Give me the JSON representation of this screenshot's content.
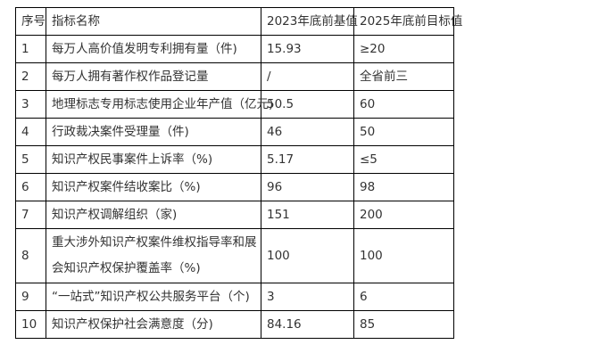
{
  "table": {
    "headers": [
      "序号",
      "指标名称",
      "2023年底前基值",
      "2025年底前目标值"
    ],
    "rows": [
      [
        "1",
        "每万人高价值发明专利拥有量（件)",
        "15.93",
        "≥20"
      ],
      [
        "2",
        "每万人拥有著作权作品登记量",
        "/",
        "全省前三"
      ],
      [
        "3",
        "地理标志专用标志使用企业年产值（亿元)",
        "50.5",
        "60"
      ],
      [
        "4",
        "行政裁决案件受理量（件)",
        "46",
        "50"
      ],
      [
        "5",
        "知识产权民事案件上诉率（%)",
        "5.17",
        "≤5"
      ],
      [
        "6",
        "知识产权案件结收案比（%)",
        "96",
        "98"
      ],
      [
        "7",
        "知识产权调解组织（家)",
        "151",
        "200"
      ],
      [
        "8",
        "重大涉外知识产权案件维权指导率和展会知识产权保护覆盖率（%)",
        "100",
        "100"
      ],
      [
        "9",
        "“一站式”知识产权公共服务平台（个)",
        "3",
        "6"
      ],
      [
        "10",
        "知识产权保护社会满意度（分)",
        "84.16",
        "85"
      ]
    ]
  }
}
